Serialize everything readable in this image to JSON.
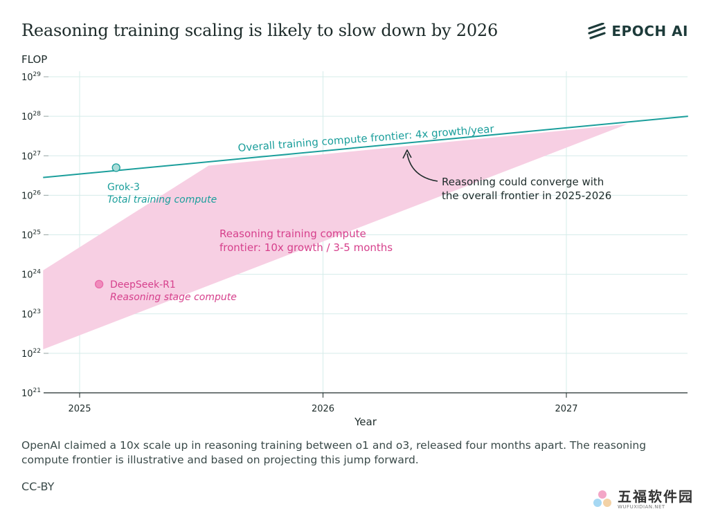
{
  "header": {
    "title": "Reasoning training scaling is likely to slow down by 2026",
    "brand": "EPOCH AI"
  },
  "chart_data": {
    "type": "line",
    "ylabel": "FLOP",
    "xlabel": "Year",
    "y_scale": "log",
    "ylim": [
      1e+21,
      1e+29
    ],
    "xlim": [
      2024.85,
      2027.5
    ],
    "y_ticks": [
      {
        "base": "10",
        "exp": "29",
        "value": 29
      },
      {
        "base": "10",
        "exp": "28",
        "value": 28
      },
      {
        "base": "10",
        "exp": "27",
        "value": 27
      },
      {
        "base": "10",
        "exp": "26",
        "value": 26
      },
      {
        "base": "10",
        "exp": "25",
        "value": 25
      },
      {
        "base": "10",
        "exp": "24",
        "value": 24
      },
      {
        "base": "10",
        "exp": "23",
        "value": 23
      },
      {
        "base": "10",
        "exp": "22",
        "value": 22
      },
      {
        "base": "10",
        "exp": "21",
        "value": 21
      }
    ],
    "x_ticks": [
      {
        "label": "2025",
        "value": 2025
      },
      {
        "label": "2026",
        "value": 2026
      },
      {
        "label": "2027",
        "value": 2027
      }
    ],
    "grid": true,
    "series": [
      {
        "name": "Overall training compute frontier: 4x growth/year",
        "color": "#1a9e9b",
        "x": [
          2024.85,
          2027.5
        ],
        "y_log10": [
          26.45,
          28.0
        ]
      }
    ],
    "band": {
      "name": "Reasoning training compute frontier: 10x growth / 3-5 months",
      "color": "#f7cfe3",
      "upper": {
        "x": [
          2024.85,
          2025.53,
          2027.25
        ],
        "y_log10": [
          24.1,
          26.75,
          27.8
        ]
      },
      "lower": {
        "x": [
          2024.85,
          2027.25
        ],
        "y_log10": [
          22.1,
          27.8
        ]
      }
    },
    "points": [
      {
        "name": "Grok-3",
        "subtitle": "Total training compute",
        "x": 2025.15,
        "y_log10": 26.7,
        "color": "#1a9e9b",
        "fill": "#a9dcd8"
      },
      {
        "name": "DeepSeek-R1",
        "subtitle": "Reasoning stage compute",
        "x": 2025.08,
        "y_log10": 23.75,
        "color": "#e868a8",
        "fill": "#f08cbc"
      }
    ],
    "annotations": {
      "frontier_label": "Overall training compute frontier: 4x growth/year",
      "reasoning_label_line1": "Reasoning training compute",
      "reasoning_label_line2": "frontier: 10x growth / 3-5 months",
      "converge_line1": "Reasoning could converge with",
      "converge_line2": "the overall frontier in 2025-2026"
    },
    "colors": {
      "teal": "#1a9e9b",
      "pink": "#d6408c",
      "grid": "#d5ecea",
      "axis": "#1d2b2a"
    }
  },
  "footer": {
    "note": "OpenAI claimed a 10x scale up in reasoning training between o1 and o3, released four months apart. The reasoning compute frontier is illustrative and based on projecting this jump forward.",
    "license": "CC-BY"
  },
  "watermark": {
    "name": "五福软件园",
    "url": "WUFUXIDIAN.NET"
  }
}
